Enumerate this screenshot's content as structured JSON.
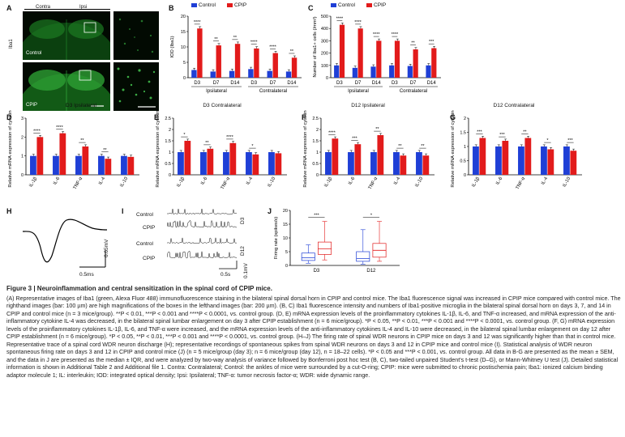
{
  "figure": {
    "title": "Figure 3  |  Neuroinflammation and central sensitization in the spinal cord of CPIP mice.",
    "caption": "(A) Representative images of Iba1 (green, Alexa Fluor 488) immunofluorescence staining in the bilateral spinal dorsal horn in CPIP and control mice. The Iba1 fluorescence signal was increased in CPIP mice compared with control mice. The righthand images (bar: 100 µm) are high magnifications of the boxes in the lefthand images (bar: 200 µm). (B, C) Iba1 fluorescence intensity and numbers of Iba1-positive microglia in the bilateral spinal dorsal horn on days 3, 7, and 14 in CPIP and control mice (n = 3 mice/group). **P < 0.01, ***P < 0.001 and ****P < 0.0001, vs. control group. (D, E) mRNA expression levels of the proinflammatory cytokines IL-1β, IL-6, and TNF-α increased, and mRNA expression of the anti-inflammatory cytokine IL-4 was decreased, in the bilateral spinal lumbar enlargement on day 3 after CPIP establishment (n = 6 mice/group). *P < 0.05, **P < 0.01, ***P < 0.001 and ****P < 0.0001, vs. control group. (F, G) mRNA expression levels of the proinflammatory cytokines IL-1β, IL-6, and TNF-α were increased, and the mRNA expression levels of the anti-inflammatory cytokines IL-4 and IL-10 were decreased, in the bilateral spinal lumbar enlargement on day 12 after CPIP establishment (n = 6 mice/group). *P < 0.05, **P < 0.01, ***P < 0.001 and ****P < 0.0001, vs. control group. (H–J) The firing rate of spinal WDR neurons in CPIP mice on days 3 and 12 was significantly higher than that in control mice. Representative trace of a spinal cord WDR neuron discharge (H); representative recordings of spontaneous spikes from spinal WDR neurons on days 3 and 12 in CPIP mice and control mice (I). Statistical analysis of WDR neuron spontaneous firing rate on days 3 and 12 in CPIP and control mice (J) (n = 5 mice/group (day 3); n = 6 mice/group (day 12), n = 18–22 cells). *P < 0.05 and ***P < 0.001, vs. control group. All data in B-G are presented as the mean ± SEM, and the data in J are presented as the median ± IQR, and were analyzed by two-way analysis of variance followed by Bonferroni post hoc test (B, C), two-tailed unpaired Student's t-test (D–G), or Mann-Whitney U test (J). Detailed statistical information is shown in Additional Table 2 and Additional file 1. Contra: Contralateral; Control: the ankles of mice were surrounded by a cut-O-ring; CPIP: mice were submitted to chronic postischemia pain; Iba1: ionized calcium binding adaptor molecule 1; IL: interleukin; IOD: integrated optical density; Ipsi: Ipsilateral; TNF-α: tumor necrosis factor-α; WDR: wide dynamic range."
  },
  "panel_letters": {
    "A": "A",
    "B": "B",
    "C": "C",
    "D": "D",
    "E": "E",
    "F": "F",
    "G": "G",
    "H": "H",
    "I": "I",
    "J": "J"
  },
  "panel_a": {
    "contra": "Contra",
    "ipsi": "Ipsi",
    "side_label": "Iba1",
    "control": "Control",
    "cpip": "CPIP"
  },
  "colors": {
    "control": "#1f3fd6",
    "cpip": "#e21b1b"
  },
  "legend": {
    "control": "Control",
    "cpip": "CPIP"
  },
  "panel_h": {
    "scale_v": "0.05mV",
    "scale_t": "0.5ms"
  },
  "panel_i": {
    "rows": [
      "Control",
      "CPIP",
      "Control",
      "CPIP"
    ],
    "day3": "D3",
    "day12": "D12",
    "scale_v": "0.1mV",
    "scale_t": "0.5s"
  },
  "chart_data": [
    {
      "id": "B",
      "type": "bar",
      "ylabel": "IOD (Iba1)",
      "ylim": [
        0,
        20
      ],
      "yticks": [
        0,
        5,
        10,
        15,
        20
      ],
      "categories": [
        "D3",
        "D7",
        "D14",
        "D3",
        "D7",
        "D14"
      ],
      "groups": [
        "Ipsilateral",
        "Contralateral"
      ],
      "series": [
        {
          "name": "Control",
          "values": [
            2.5,
            2.0,
            2.2,
            2.8,
            2.2,
            2.0
          ]
        },
        {
          "name": "CPIP",
          "values": [
            16.0,
            10.5,
            11.0,
            9.5,
            8.0,
            6.5
          ]
        }
      ],
      "significance": [
        "****",
        "**",
        "**",
        "****",
        "****",
        "**"
      ]
    },
    {
      "id": "C",
      "type": "bar",
      "ylabel": "Number of Iba1+ cells (/mm²)",
      "ylim": [
        0,
        500
      ],
      "yticks": [
        0,
        100,
        200,
        300,
        400,
        500
      ],
      "categories": [
        "D3",
        "D7",
        "D14",
        "D3",
        "D7",
        "D14"
      ],
      "groups": [
        "Ipsilateral",
        "Contralateral"
      ],
      "series": [
        {
          "name": "Control",
          "values": [
            100,
            80,
            90,
            100,
            95,
            100
          ]
        },
        {
          "name": "CPIP",
          "values": [
            430,
            400,
            300,
            300,
            230,
            240
          ]
        }
      ],
      "significance": [
        "****",
        "****",
        "****",
        "****",
        "**",
        "***"
      ]
    },
    {
      "id": "D",
      "type": "bar",
      "title": "D3 Ipsilateral",
      "ylabel": "Relative mRNA expression of cytokines",
      "ylim": [
        0,
        3
      ],
      "yticks": [
        0,
        1,
        2,
        3
      ],
      "categories": [
        "IL-1β",
        "IL-6",
        "TNF-α",
        "IL-4",
        "IL-10"
      ],
      "series": [
        {
          "name": "Control",
          "values": [
            1.0,
            1.0,
            1.0,
            1.0,
            1.0
          ]
        },
        {
          "name": "CPIP",
          "values": [
            2.0,
            2.2,
            1.5,
            0.85,
            0.95
          ]
        }
      ],
      "significance": [
        "****",
        "****",
        "**",
        "**",
        ""
      ]
    },
    {
      "id": "E",
      "type": "bar",
      "title": "D3 Contralateral",
      "ylabel": "Relative mRNA expression of cytokines",
      "ylim": [
        0,
        2.5
      ],
      "yticks": [
        0.0,
        0.5,
        1.0,
        1.5,
        2.0,
        2.5
      ],
      "categories": [
        "IL-1β",
        "IL-6",
        "TNF-α",
        "IL-4",
        "IL-10"
      ],
      "series": [
        {
          "name": "Control",
          "values": [
            1.0,
            1.0,
            1.0,
            1.0,
            1.0
          ]
        },
        {
          "name": "CPIP",
          "values": [
            1.5,
            1.15,
            1.4,
            0.9,
            0.95
          ]
        }
      ],
      "significance": [
        "*",
        "**",
        "****",
        "*",
        ""
      ]
    },
    {
      "id": "F",
      "type": "bar",
      "title": "D12 Ipsilateral",
      "ylabel": "Relative mRNA expression of cytokines",
      "ylim": [
        0,
        2.5
      ],
      "yticks": [
        0.0,
        0.5,
        1.0,
        1.5,
        2.0,
        2.5
      ],
      "categories": [
        "IL-1β",
        "IL-6",
        "TNF-α",
        "IL-4",
        "IL-10"
      ],
      "series": [
        {
          "name": "Control",
          "values": [
            1.0,
            1.0,
            1.0,
            1.0,
            1.0
          ]
        },
        {
          "name": "CPIP",
          "values": [
            1.6,
            1.35,
            1.75,
            0.85,
            0.85
          ]
        }
      ],
      "significance": [
        "****",
        "***",
        "**",
        "**",
        "**"
      ]
    },
    {
      "id": "G",
      "type": "bar",
      "title": "D12 Contralateral",
      "ylabel": "Relative mRNA expression of cytokines",
      "ylim": [
        0,
        2.0
      ],
      "yticks": [
        0.0,
        0.5,
        1.0,
        1.5,
        2.0
      ],
      "categories": [
        "IL-1β",
        "IL-6",
        "TNF-α",
        "IL-4",
        "IL-10"
      ],
      "series": [
        {
          "name": "Control",
          "values": [
            1.0,
            1.0,
            1.0,
            1.0,
            1.0
          ]
        },
        {
          "name": "CPIP",
          "values": [
            1.3,
            1.2,
            1.3,
            0.9,
            0.85
          ]
        }
      ],
      "significance": [
        "***",
        "***",
        "**",
        "*",
        "***"
      ]
    },
    {
      "id": "J",
      "type": "box",
      "ylabel": "Firing rate (spikes/s)",
      "ylim": [
        0,
        20
      ],
      "yticks": [
        0,
        5,
        10,
        15,
        20
      ],
      "categories": [
        "D3",
        "D12"
      ],
      "series": [
        {
          "name": "Control",
          "box": [
            [
              0.8,
              1.8,
              2.8,
              4.5,
              7.5
            ],
            [
              0.5,
              1.5,
              2.5,
              5.0,
              13.0
            ]
          ]
        },
        {
          "name": "CPIP",
          "box": [
            [
              2.0,
              4.0,
              6.0,
              8.5,
              16.0
            ],
            [
              1.5,
              3.0,
              5.5,
              8.0,
              16.0
            ]
          ]
        }
      ],
      "significance": [
        "***",
        "*"
      ]
    }
  ]
}
